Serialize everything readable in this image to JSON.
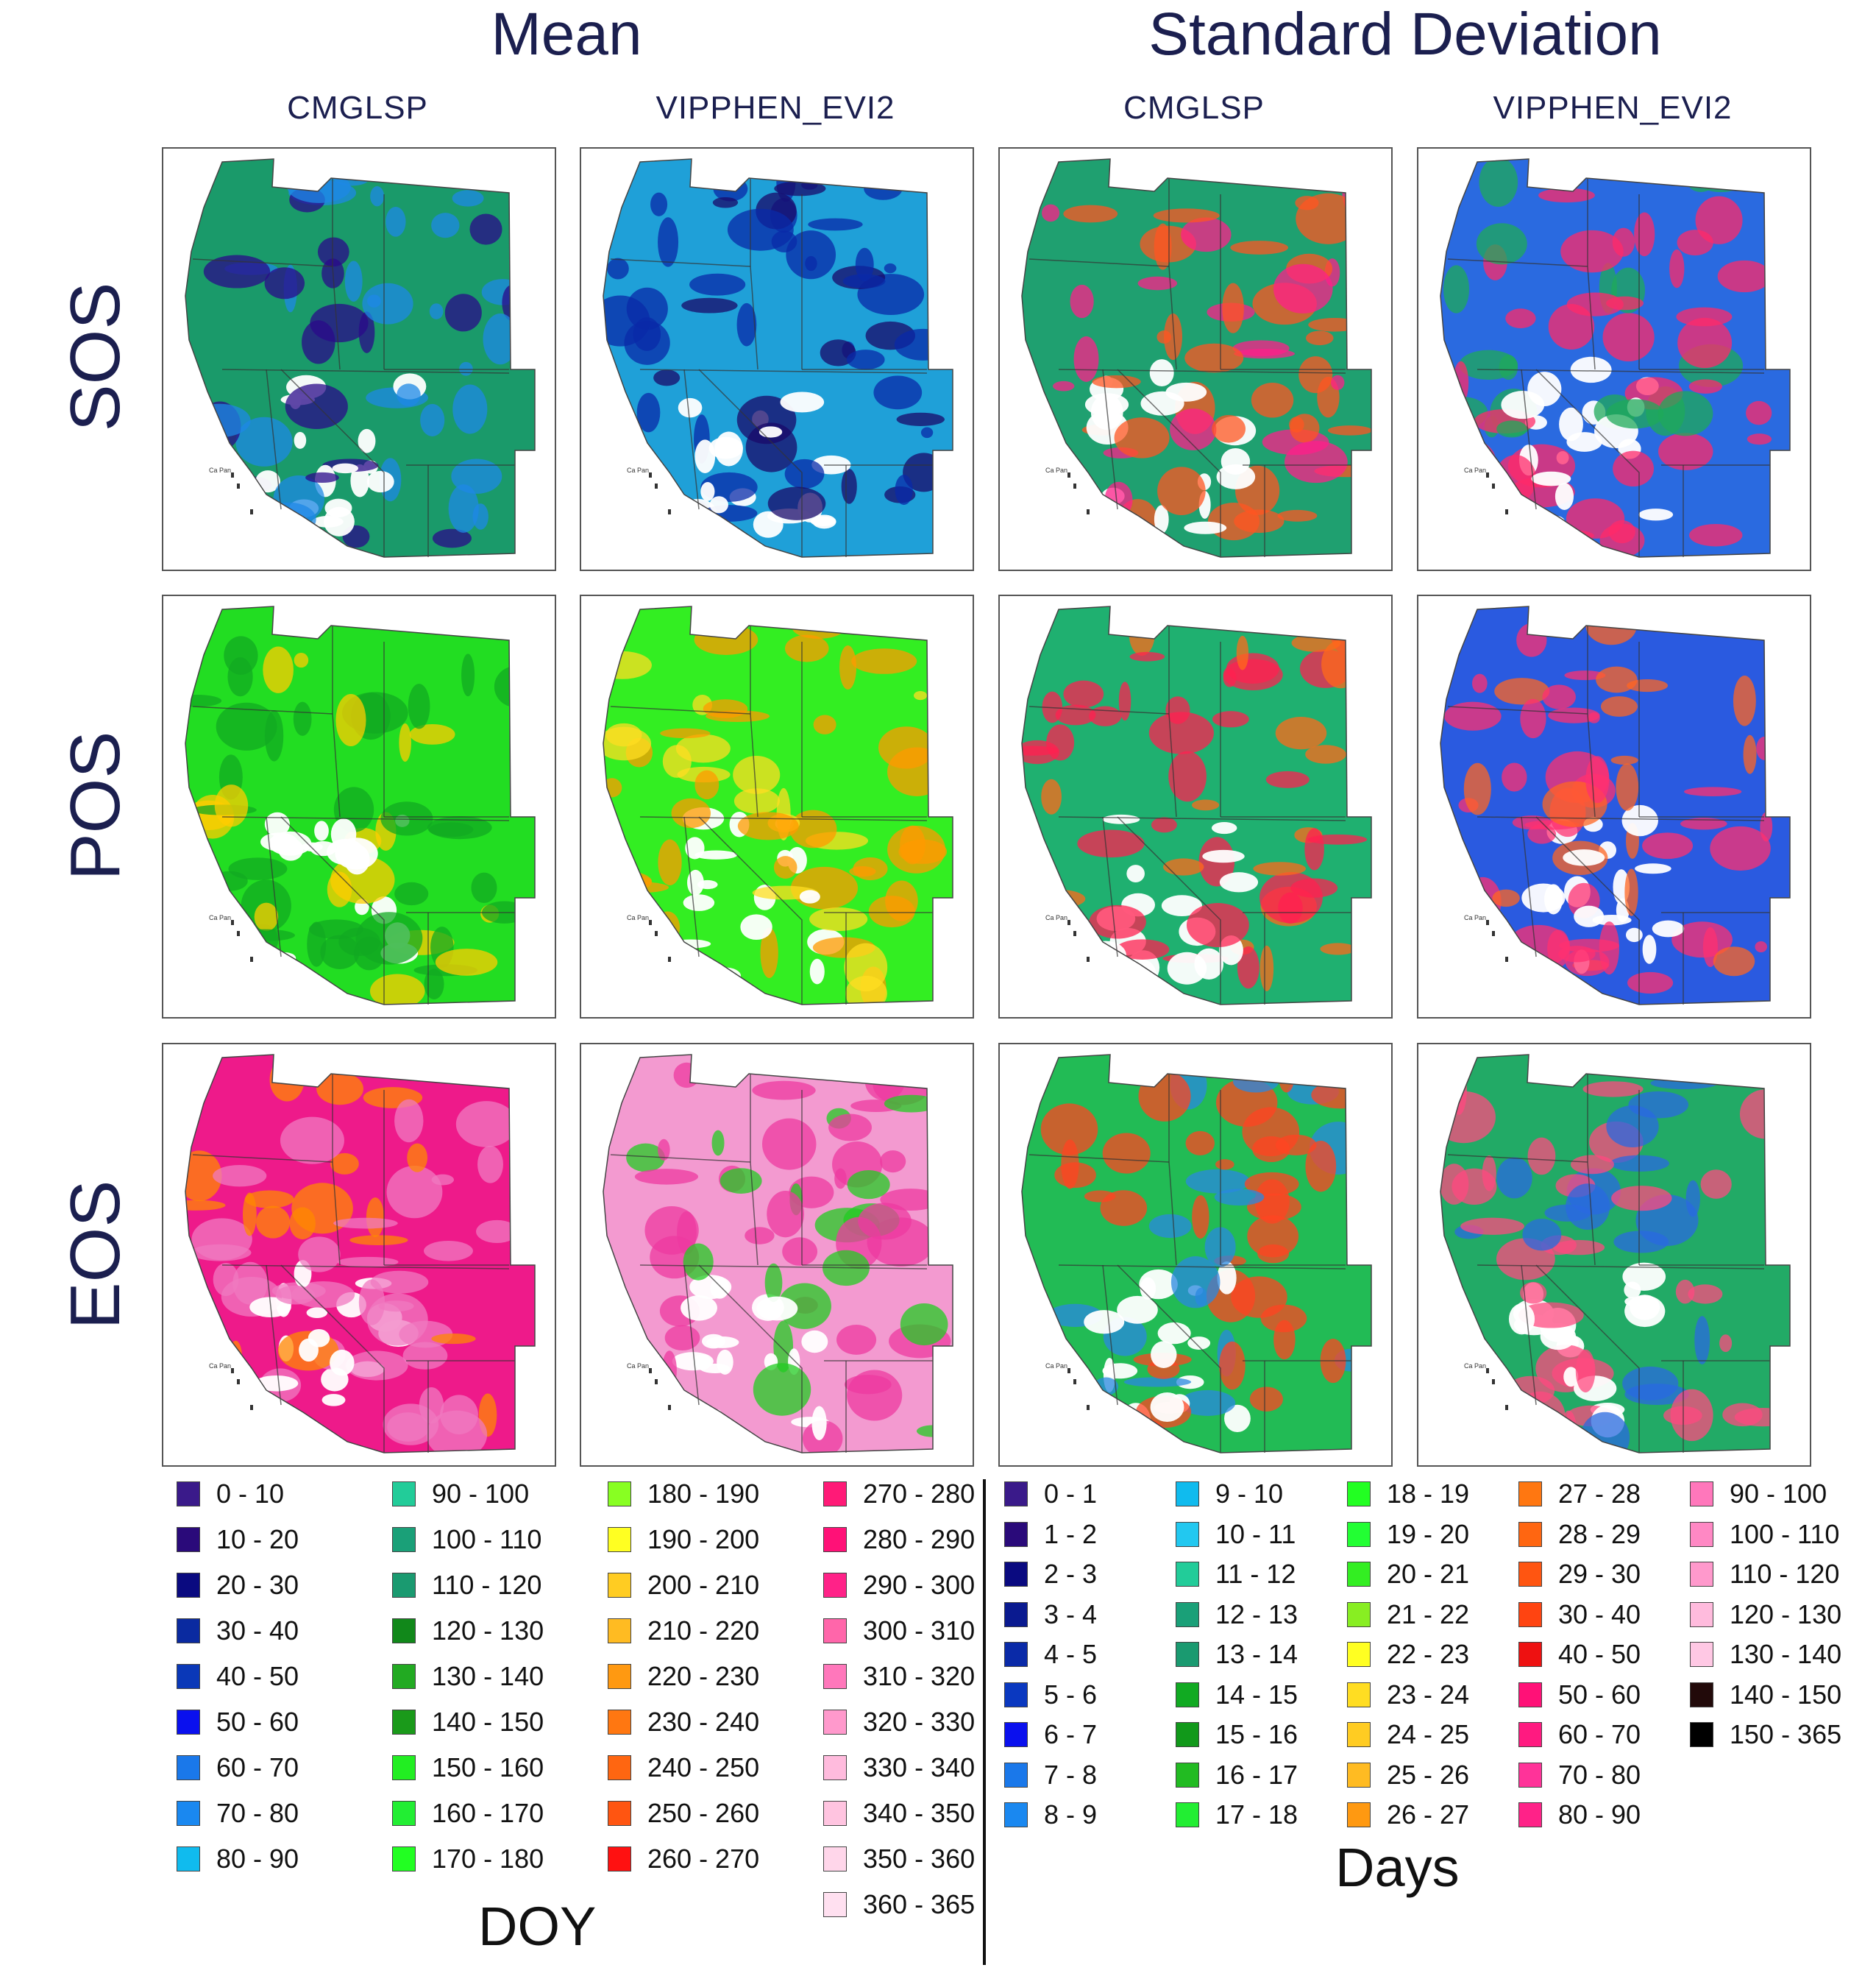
{
  "headers": {
    "mean": "Mean",
    "sd": "Standard Deviation"
  },
  "columns": [
    "CMGLSP",
    "VIPPHEN_EVI2",
    "CMGLSP",
    "VIPPHEN_EVI2"
  ],
  "rows": [
    "SOS",
    "POS",
    "EOS"
  ],
  "map_state_label": "Ca Pan",
  "panels": [
    {
      "row": "SOS",
      "stat": "Mean",
      "product": "CMGLSP",
      "dominant": "#1a9a6a",
      "secondary": "#1e88e5",
      "accent": "#2a0a8a"
    },
    {
      "row": "SOS",
      "stat": "Mean",
      "product": "VIPPHEN_EVI2",
      "dominant": "#1fa0d8",
      "secondary": "#0a2aa8",
      "accent": "#1a0a6a"
    },
    {
      "row": "SOS",
      "stat": "Standard Deviation",
      "product": "CMGLSP",
      "dominant": "#1fa070",
      "secondary": "#ff5522",
      "accent": "#ff1f8a"
    },
    {
      "row": "SOS",
      "stat": "Standard Deviation",
      "product": "VIPPHEN_EVI2",
      "dominant": "#2a6ae0",
      "secondary": "#ff2a6a",
      "accent": "#1faa5a"
    },
    {
      "row": "POS",
      "stat": "Mean",
      "product": "CMGLSP",
      "dominant": "#22dd22",
      "secondary": "#11aa22",
      "accent": "#ffcc00"
    },
    {
      "row": "POS",
      "stat": "Mean",
      "product": "VIPPHEN_EVI2",
      "dominant": "#33ee22",
      "secondary": "#ff9900",
      "accent": "#ffdd22"
    },
    {
      "row": "POS",
      "stat": "Standard Deviation",
      "product": "CMGLSP",
      "dominant": "#1fb070",
      "secondary": "#ff2050",
      "accent": "#ff6a1a"
    },
    {
      "row": "POS",
      "stat": "Standard Deviation",
      "product": "VIPPHEN_EVI2",
      "dominant": "#2a5ae0",
      "secondary": "#ff3070",
      "accent": "#ff6622"
    },
    {
      "row": "EOS",
      "stat": "Mean",
      "product": "CMGLSP",
      "dominant": "#ee1a8a",
      "secondary": "#f07ac0",
      "accent": "#ff8800"
    },
    {
      "row": "EOS",
      "stat": "Mean",
      "product": "VIPPHEN_EVI2",
      "dominant": "#f39ad0",
      "secondary": "#ee3aa0",
      "accent": "#22cc22"
    },
    {
      "row": "EOS",
      "stat": "Standard Deviation",
      "product": "CMGLSP",
      "dominant": "#22bb55",
      "secondary": "#ff4422",
      "accent": "#2a88e0"
    },
    {
      "row": "EOS",
      "stat": "Standard Deviation",
      "product": "VIPPHEN_EVI2",
      "dominant": "#22aa66",
      "secondary": "#ff4a80",
      "accent": "#2a6ae0"
    }
  ],
  "legend_doy": {
    "unit": "DOY",
    "items": [
      {
        "label": "0 - 10",
        "color": "#3a1a8a"
      },
      {
        "label": "10 - 20",
        "color": "#2a0a7a"
      },
      {
        "label": "20 - 30",
        "color": "#0a0a80"
      },
      {
        "label": "30 - 40",
        "color": "#0a2aa0"
      },
      {
        "label": "40 - 50",
        "color": "#0a38b8"
      },
      {
        "label": "50 - 60",
        "color": "#0a10ee"
      },
      {
        "label": "60 - 70",
        "color": "#1a78ea"
      },
      {
        "label": "70 - 80",
        "color": "#1a88f0"
      },
      {
        "label": "80 - 90",
        "color": "#10bbee"
      },
      {
        "label": "90 - 100",
        "color": "#22cc99"
      },
      {
        "label": "100 - 110",
        "color": "#1aa078"
      },
      {
        "label": "110 - 120",
        "color": "#1a9a70"
      },
      {
        "label": "120 - 130",
        "color": "#11881a"
      },
      {
        "label": "130 - 140",
        "color": "#22aa22"
      },
      {
        "label": "140 - 150",
        "color": "#1a9a1a"
      },
      {
        "label": "150 - 160",
        "color": "#22ee22"
      },
      {
        "label": "160 - 170",
        "color": "#22ee33"
      },
      {
        "label": "170 - 180",
        "color": "#22ff22"
      },
      {
        "label": "180 - 190",
        "color": "#88ff22"
      },
      {
        "label": "190 - 200",
        "color": "#ffff22"
      },
      {
        "label": "200 - 210",
        "color": "#ffcc22"
      },
      {
        "label": "210 - 220",
        "color": "#ffbb22"
      },
      {
        "label": "220 - 230",
        "color": "#ff9911"
      },
      {
        "label": "230 - 240",
        "color": "#ff7711"
      },
      {
        "label": "240 - 250",
        "color": "#ff6611"
      },
      {
        "label": "250 - 260",
        "color": "#ff5511"
      },
      {
        "label": "260 - 270",
        "color": "#ff1111"
      },
      {
        "label": "270 - 280",
        "color": "#ff1a77"
      },
      {
        "label": "280 - 290",
        "color": "#ff1177"
      },
      {
        "label": "290 - 300",
        "color": "#ff2288"
      },
      {
        "label": "300 - 310",
        "color": "#ff66aa"
      },
      {
        "label": "310 - 320",
        "color": "#ff77bb"
      },
      {
        "label": "320 - 330",
        "color": "#ff99cc"
      },
      {
        "label": "330 - 340",
        "color": "#ffbbdd"
      },
      {
        "label": "340 - 350",
        "color": "#ffc4e0"
      },
      {
        "label": "350 - 360",
        "color": "#ffd6ea"
      },
      {
        "label": "360 - 365",
        "color": "#ffe0f0"
      }
    ]
  },
  "legend_days": {
    "unit": "Days",
    "items": [
      {
        "label": "0 - 1",
        "color": "#3a1a8a"
      },
      {
        "label": "1 - 2",
        "color": "#2a0a7a"
      },
      {
        "label": "2 - 3",
        "color": "#0a0a80"
      },
      {
        "label": "3 - 4",
        "color": "#0a1a90"
      },
      {
        "label": "4 - 5",
        "color": "#0a2aa8"
      },
      {
        "label": "5 - 6",
        "color": "#0a38c0"
      },
      {
        "label": "6 - 7",
        "color": "#0a10ee"
      },
      {
        "label": "7 - 8",
        "color": "#1a78ea"
      },
      {
        "label": "8 - 9",
        "color": "#1a88f0"
      },
      {
        "label": "9 - 10",
        "color": "#10bbee"
      },
      {
        "label": "10 - 11",
        "color": "#22c8f0"
      },
      {
        "label": "11 - 12",
        "color": "#22cc99"
      },
      {
        "label": "12 - 13",
        "color": "#1aa078"
      },
      {
        "label": "13 - 14",
        "color": "#1a9a70"
      },
      {
        "label": "14 - 15",
        "color": "#11aa22"
      },
      {
        "label": "15 - 16",
        "color": "#11991a"
      },
      {
        "label": "16 - 17",
        "color": "#22bb22"
      },
      {
        "label": "17 - 18",
        "color": "#22ee33"
      },
      {
        "label": "18 - 19",
        "color": "#22ff22"
      },
      {
        "label": "19 - 20",
        "color": "#22ff33"
      },
      {
        "label": "20 - 21",
        "color": "#33ee22"
      },
      {
        "label": "21 - 22",
        "color": "#88ee22"
      },
      {
        "label": "22 - 23",
        "color": "#ffff22"
      },
      {
        "label": "23 - 24",
        "color": "#ffdd22"
      },
      {
        "label": "24 - 25",
        "color": "#ffcc22"
      },
      {
        "label": "25 - 26",
        "color": "#ffbb22"
      },
      {
        "label": "26 - 27",
        "color": "#ff9911"
      },
      {
        "label": "27 - 28",
        "color": "#ff7711"
      },
      {
        "label": "28 - 29",
        "color": "#ff6611"
      },
      {
        "label": "29 - 30",
        "color": "#ff5511"
      },
      {
        "label": "30 - 40",
        "color": "#ff4411"
      },
      {
        "label": "40 - 50",
        "color": "#ee1111"
      },
      {
        "label": "50 - 60",
        "color": "#ff1177"
      },
      {
        "label": "60 - 70",
        "color": "#ff1a80"
      },
      {
        "label": "70 - 80",
        "color": "#ff3399"
      },
      {
        "label": "80 - 90",
        "color": "#ff2288"
      },
      {
        "label": "90 - 100",
        "color": "#ff77bb"
      },
      {
        "label": "100 - 110",
        "color": "#ff88c4"
      },
      {
        "label": "110 - 120",
        "color": "#ff99cc"
      },
      {
        "label": "120 - 130",
        "color": "#ffbbdd"
      },
      {
        "label": "130 - 140",
        "color": "#ffc8e4"
      },
      {
        "label": "140 - 150",
        "color": "#220a0a"
      },
      {
        "label": "150 - 365",
        "color": "#000000"
      }
    ]
  }
}
